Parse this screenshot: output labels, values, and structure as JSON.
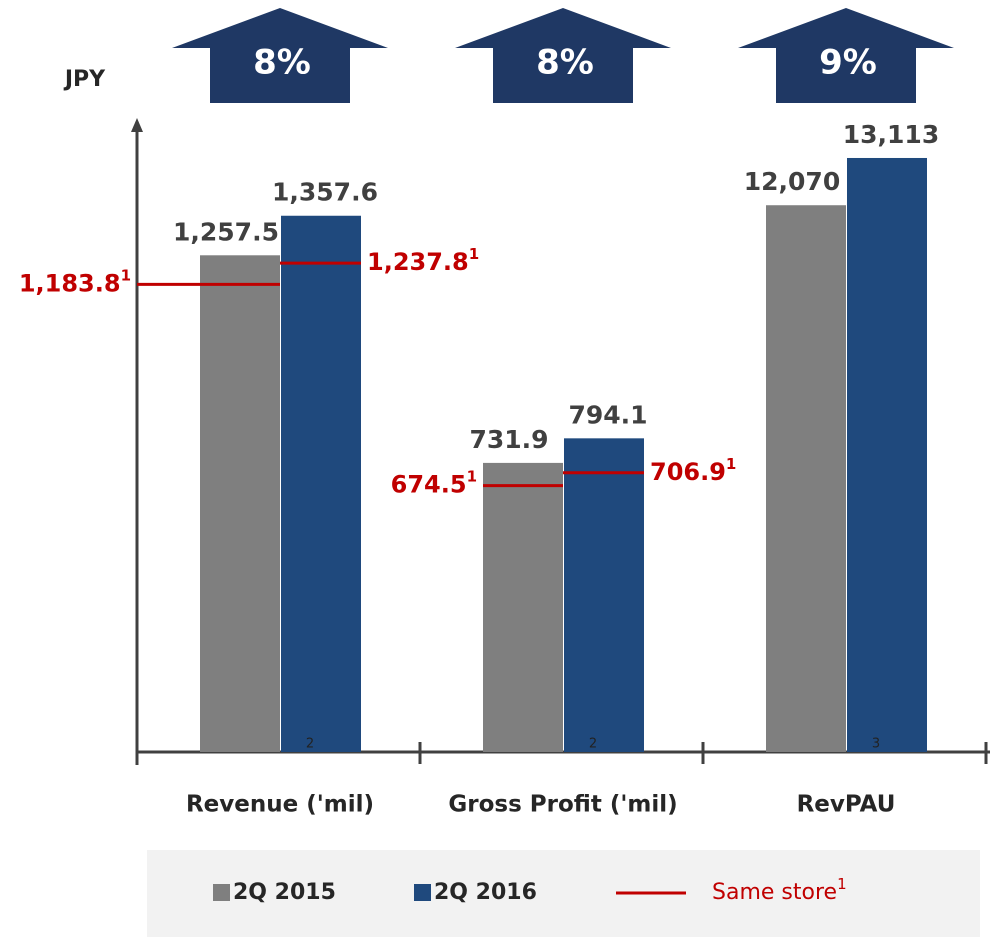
{
  "chart_data": {
    "type": "bar",
    "y_label": "JPY",
    "categories": [
      "Revenue ('mil)",
      "Gross Profit ('mil)",
      "RevPAU"
    ],
    "category_footnotes": [
      "2",
      "2",
      "3"
    ],
    "growth": [
      8,
      8,
      9
    ],
    "growth_labels": [
      "8%",
      "8%",
      "9%"
    ],
    "series": [
      {
        "name": "2Q 2015",
        "color": "#7f7f7f",
        "values": [
          1257.5,
          731.9,
          12070
        ],
        "value_labels": [
          "1,257.5",
          "731.9",
          "12,070"
        ]
      },
      {
        "name": "2Q 2016",
        "color": "#1f497d",
        "values": [
          1357.6,
          794.1,
          13113
        ],
        "value_labels": [
          "1,357.6",
          "794.1",
          "13,113"
        ]
      }
    ],
    "same_store": {
      "name": "Same store",
      "footnote": "1",
      "color": "#c00000",
      "series": [
        {
          "values": [
            1183.8,
            674.5,
            null
          ],
          "value_labels": [
            "1,183.8",
            "674.5",
            null
          ]
        },
        {
          "values": [
            1237.8,
            706.9,
            null
          ],
          "value_labels": [
            "1,237.8",
            "706.9",
            null
          ]
        }
      ]
    }
  }
}
